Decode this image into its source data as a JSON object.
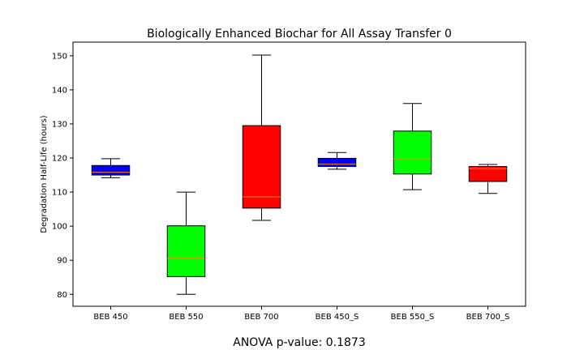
{
  "chart_data": {
    "type": "box",
    "title": "Biologically Enhanced Biochar for All Assay Transfer 0",
    "xlabel": "",
    "ylabel": "Degradation Half-Life (hours)",
    "ylim": [
      76.5,
      154
    ],
    "yticks": [
      80,
      90,
      100,
      110,
      120,
      130,
      140,
      150
    ],
    "grid": false,
    "categories": [
      "BEB 450",
      "BEB 550",
      "BEB 700",
      "BEB 450_S",
      "BEB 550_S",
      "BEB 700_S"
    ],
    "boxes": [
      {
        "min": 114.2,
        "q1": 115.0,
        "median": 115.8,
        "q3": 117.8,
        "max": 119.8,
        "color": "#0000ff"
      },
      {
        "min": 80.0,
        "q1": 85.2,
        "median": 90.6,
        "q3": 100.1,
        "max": 110.0,
        "color": "#00ff00"
      },
      {
        "min": 101.7,
        "q1": 105.3,
        "median": 108.6,
        "q3": 129.5,
        "max": 150.2,
        "color": "#ff0000"
      },
      {
        "min": 116.7,
        "q1": 117.5,
        "median": 118.2,
        "q3": 119.9,
        "max": 121.6,
        "color": "#0000ff"
      },
      {
        "min": 110.7,
        "q1": 115.3,
        "median": 119.8,
        "q3": 127.9,
        "max": 136.0,
        "color": "#00ff00"
      },
      {
        "min": 109.6,
        "q1": 113.1,
        "median": 116.9,
        "q3": 117.5,
        "max": 118.1,
        "color": "#ff0000"
      }
    ],
    "median_color": "#ff8c00"
  },
  "footer": "ANOVA p-value: 0.1873"
}
